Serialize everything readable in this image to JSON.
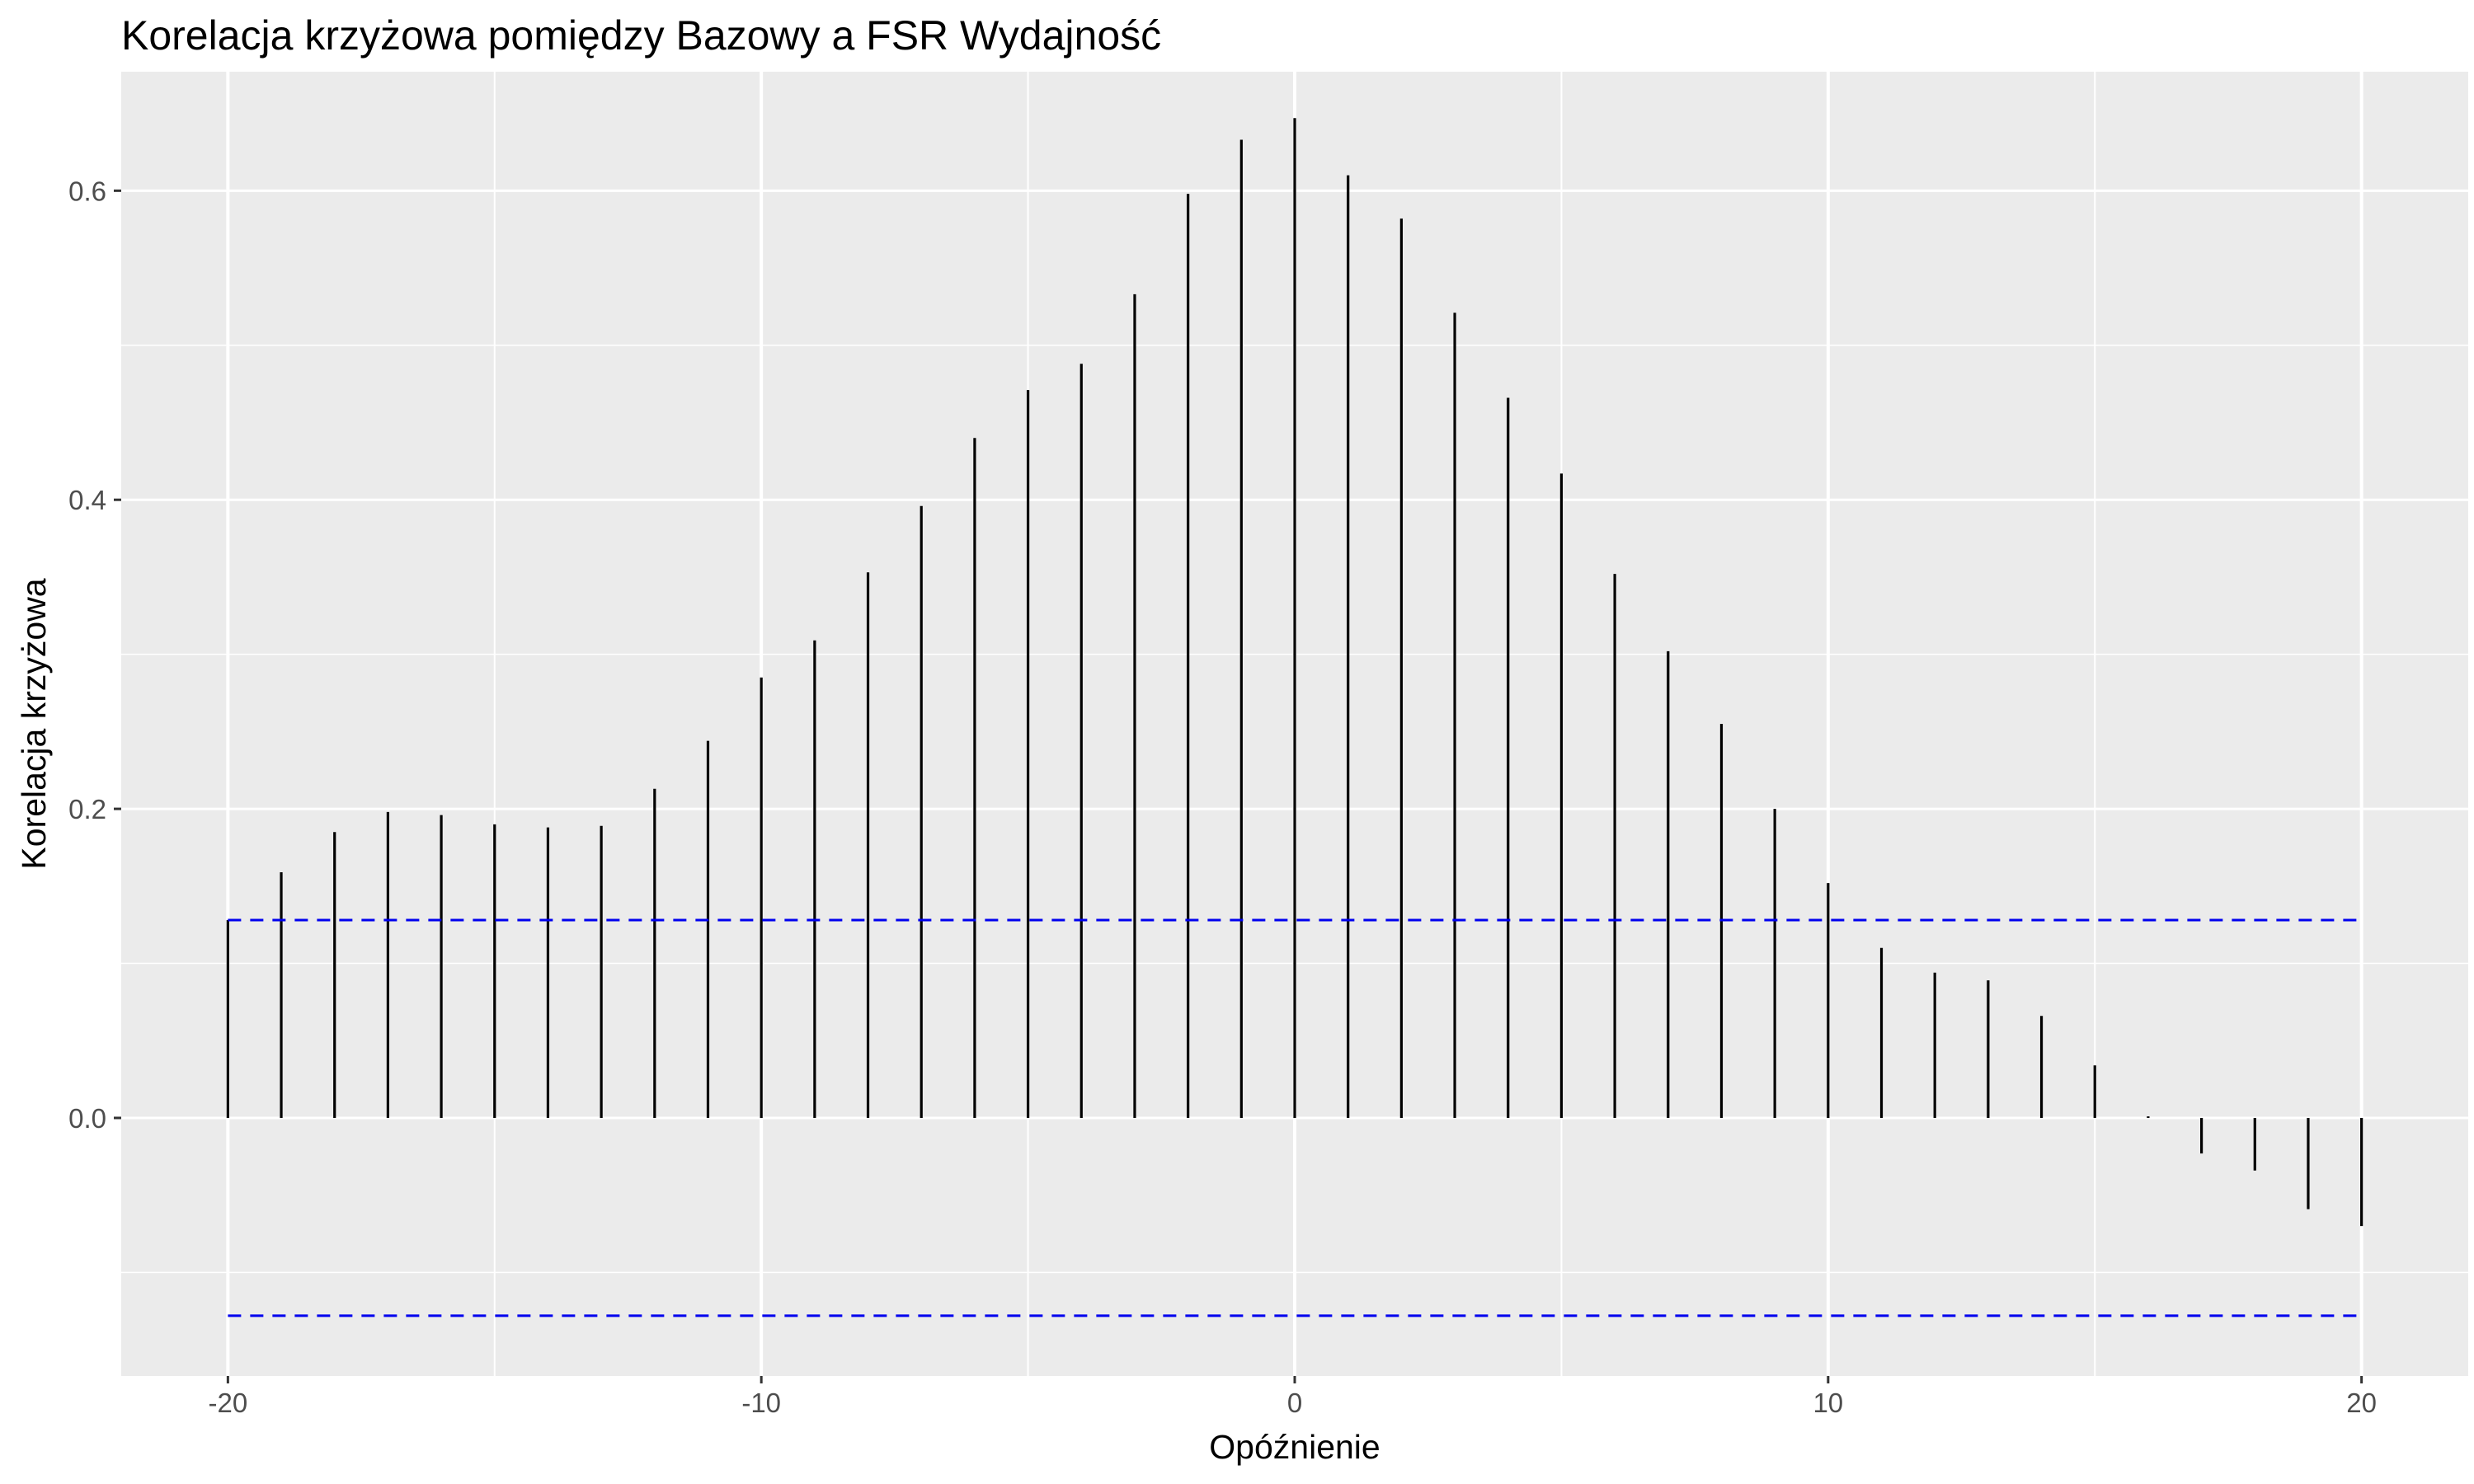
{
  "chart_data": {
    "type": "bar",
    "title": "Korelacja krzyżowa pomiędzy Bazowy a FSR Wydajność",
    "xlabel": "Opóźnienie",
    "ylabel": "Korelacja krzyżowa",
    "xlim": [
      -22,
      22
    ],
    "ylim": [
      -0.167,
      0.677
    ],
    "x_ticks": [
      -20,
      -10,
      0,
      10,
      20
    ],
    "x_tick_labels": [
      "-20",
      "-10",
      "0",
      "10",
      "20"
    ],
    "y_ticks": [
      0.0,
      0.2,
      0.4,
      0.6
    ],
    "y_tick_labels": [
      "0.0",
      "0.2",
      "0.4",
      "0.6"
    ],
    "x_minor_ticks": [
      -15,
      -5,
      5,
      15
    ],
    "y_minor_ticks": [
      -0.1,
      0.1,
      0.3,
      0.5
    ],
    "grid": true,
    "confidence_bounds": [
      0.128,
      -0.128
    ],
    "lags": [
      -20,
      -19,
      -18,
      -17,
      -16,
      -15,
      -14,
      -13,
      -12,
      -11,
      -10,
      -9,
      -8,
      -7,
      -6,
      -5,
      -4,
      -3,
      -2,
      -1,
      0,
      1,
      2,
      3,
      4,
      5,
      6,
      7,
      8,
      9,
      10,
      11,
      12,
      13,
      14,
      15,
      16,
      17,
      18,
      19,
      20
    ],
    "values": [
      0.128,
      0.159,
      0.185,
      0.198,
      0.196,
      0.19,
      0.188,
      0.189,
      0.213,
      0.244,
      0.285,
      0.309,
      0.353,
      0.396,
      0.44,
      0.471,
      0.488,
      0.533,
      0.598,
      0.633,
      0.647,
      0.61,
      0.582,
      0.521,
      0.466,
      0.417,
      0.352,
      0.302,
      0.255,
      0.2,
      0.152,
      0.11,
      0.094,
      0.089,
      0.066,
      0.034,
      0.001,
      -0.023,
      -0.034,
      -0.059,
      -0.07
    ],
    "colors": {
      "panel_background": "#ebebeb",
      "grid_major": "#ffffff",
      "grid_minor": "#f5f5f5",
      "bars": "#000000",
      "confidence_bounds": "#0000ee",
      "tick_label": "#4d4d4d",
      "tick_mark": "#333333"
    }
  }
}
